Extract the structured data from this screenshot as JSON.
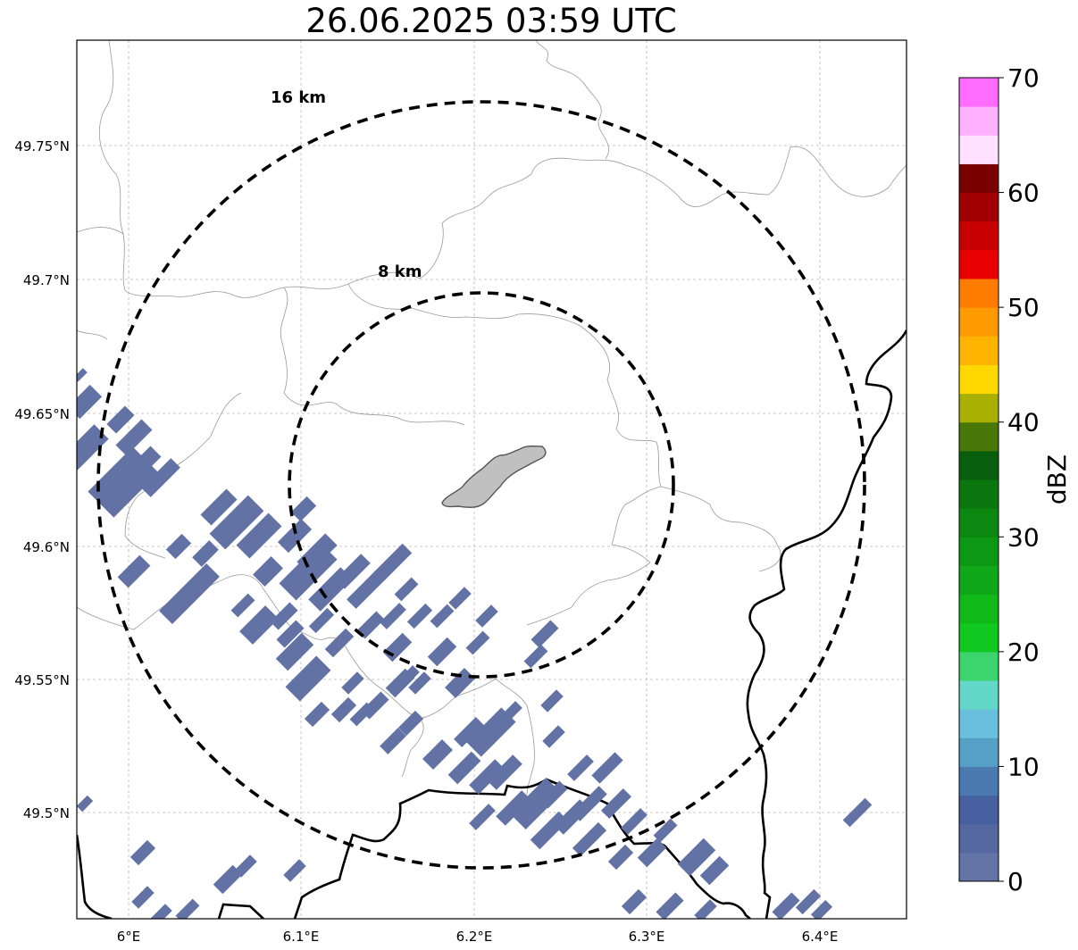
{
  "title": "26.06.2025 03:59 UTC",
  "map": {
    "lon_ticks": [
      "6°E",
      "6.1°E",
      "6.2°E",
      "6.3°E",
      "6.4°E"
    ],
    "lat_ticks": [
      "49.75°N",
      "49.7°N",
      "49.65°N",
      "49.6°N",
      "49.55°N",
      "49.5°N"
    ],
    "rings": [
      {
        "label": "16 km",
        "radius_km": 16
      },
      {
        "label": "8 km",
        "radius_km": 8
      }
    ],
    "gridlines": true,
    "colors": {
      "echo": "#6272a4",
      "urban_area": "#c0c0c0",
      "border": "#000000",
      "admin_lines": "#9a9a9a"
    }
  },
  "colorbar": {
    "label": "dBZ",
    "ticks": [
      "0",
      "10",
      "20",
      "30",
      "40",
      "50",
      "60",
      "70"
    ],
    "min": 0,
    "max": 70,
    "step": 2.5,
    "colors": [
      "#6474a6",
      "#5568a0",
      "#4660a0",
      "#4a7ab0",
      "#56a0c8",
      "#68c0dc",
      "#64d8c8",
      "#3cd46c",
      "#10c820",
      "#10b818",
      "#10a818",
      "#0c9814",
      "#0c8810",
      "#0a780e",
      "#085e0c",
      "#4a7808",
      "#a8b004",
      "#ffd800",
      "#ffb400",
      "#ff9a00",
      "#ff7c00",
      "#e80000",
      "#c80000",
      "#a00000",
      "#7a0000",
      "#ffe0ff",
      "#ffb0ff",
      "#ff6cff",
      "#f030f0"
    ]
  }
}
